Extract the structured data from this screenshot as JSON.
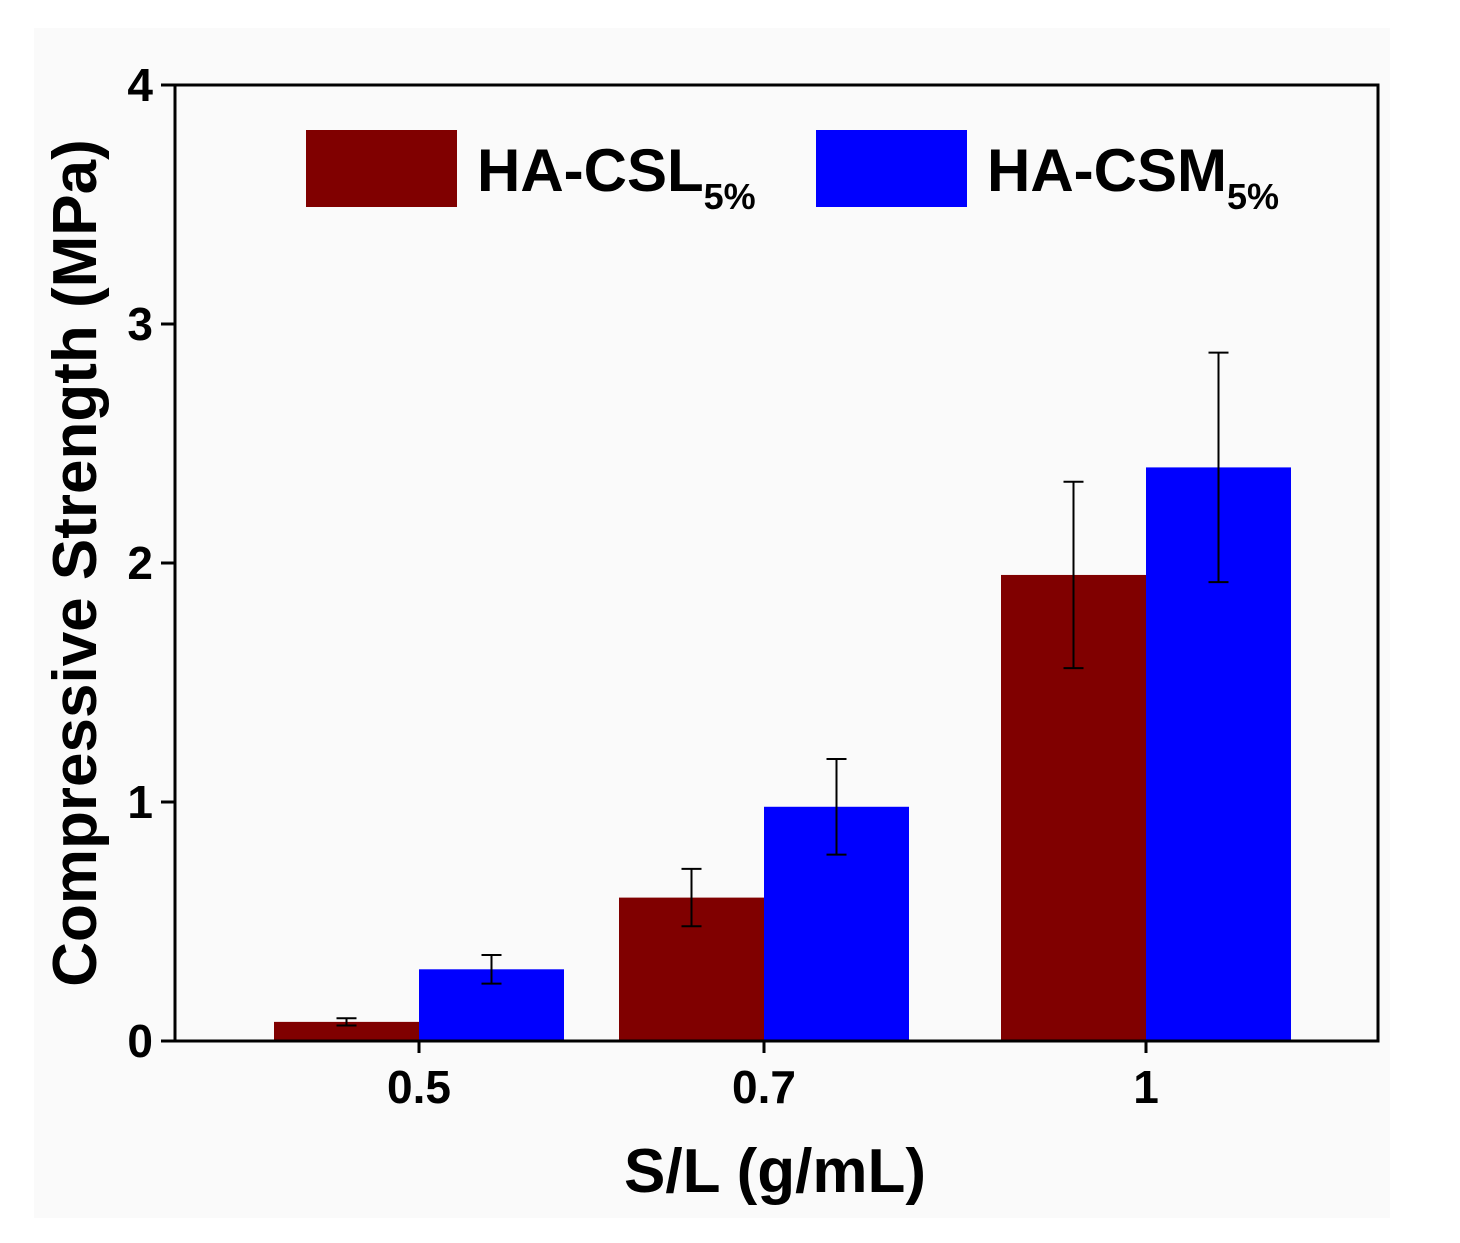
{
  "chart_data": {
    "type": "bar",
    "title": "",
    "xlabel": "S/L (g/mL)",
    "ylabel": "Compressive Strength (MPa)",
    "ylim": [
      0,
      4
    ],
    "yticks": [
      "0",
      "1",
      "2",
      "3",
      "4"
    ],
    "categories": [
      "0.5",
      "0.7",
      "1"
    ],
    "legend_position": "top",
    "series": [
      {
        "name": "HA-CSL",
        "subscript": "5%",
        "color": "#800000",
        "values": [
          0.08,
          0.6,
          1.95
        ],
        "errors": [
          0.015,
          0.12,
          0.39
        ]
      },
      {
        "name": "HA-CSM",
        "subscript": "5%",
        "color": "#0000ff",
        "values": [
          0.3,
          0.98,
          2.4
        ],
        "errors": [
          0.06,
          0.2,
          0.48
        ]
      }
    ]
  }
}
